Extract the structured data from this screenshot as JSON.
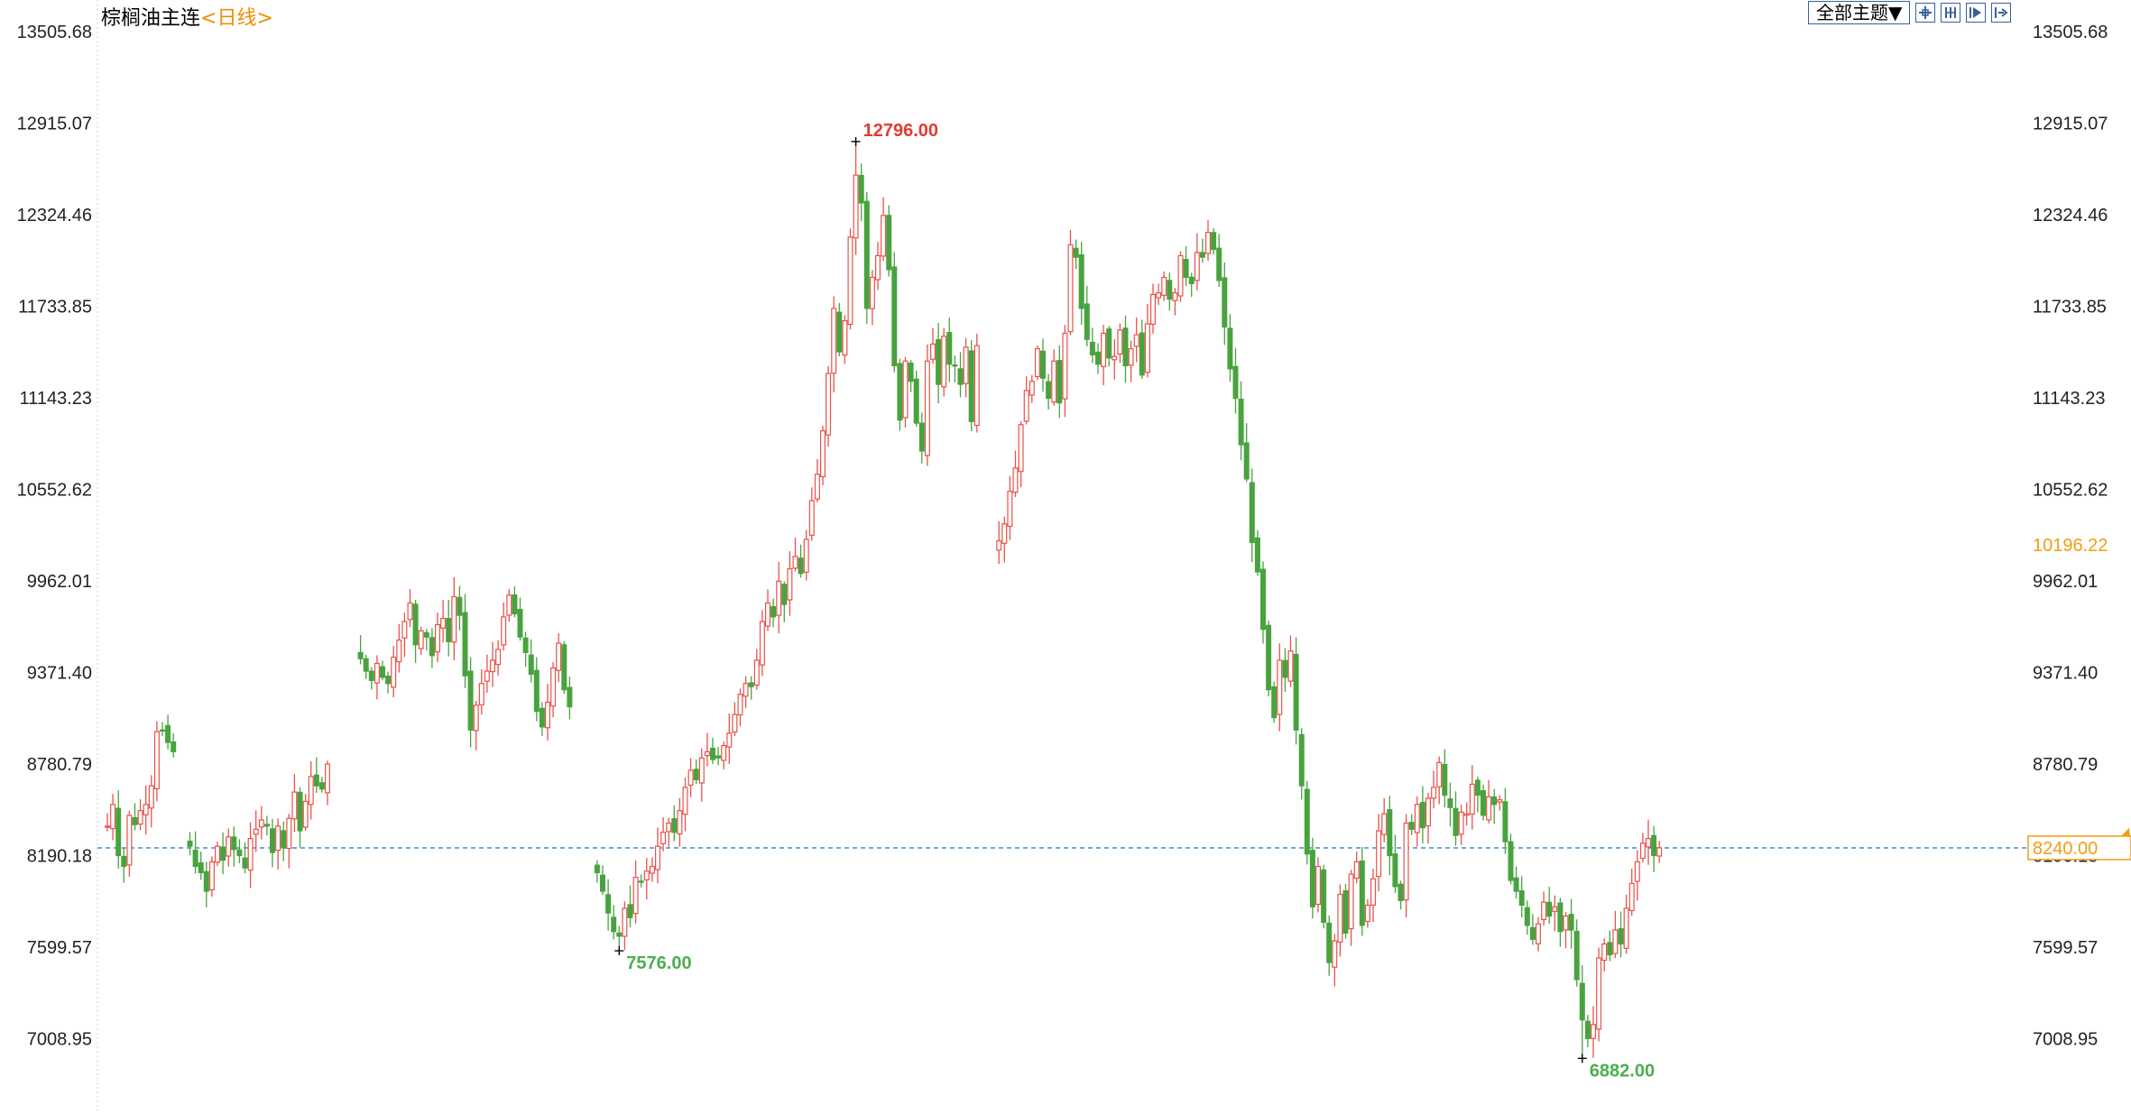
{
  "header": {
    "symbol": "棕榈油主连",
    "period_open": "<",
    "period": "日线",
    "period_close": ">",
    "theme_button": "全部主题▼"
  },
  "toolbar_icons": [
    "crosshair-icon",
    "interval-icon",
    "play-icon",
    "step-forward-icon"
  ],
  "colors": {
    "up": "#e8524a",
    "down": "#48a33e",
    "last_price": "#f39c12",
    "dashed_line": "#3a8fd0",
    "high_label": "#e03c31",
    "low_label": "#4cae4c"
  },
  "chart_data": {
    "type": "candlestick",
    "title": "棕榈油主连",
    "y_ticks": [
      "13505.68",
      "12915.07",
      "12324.46",
      "11733.85",
      "11143.23",
      "10552.62",
      "9962.01",
      "9371.40",
      "8780.79",
      "8190.18",
      "7599.57",
      "7008.95"
    ],
    "ylim": [
      6440,
      13505.68
    ],
    "right_markers": {
      "reference": "10196.22",
      "last": "8240.00"
    },
    "annotations": {
      "high": "12796.00",
      "low1": "7576.00",
      "low2": "6882.00"
    },
    "dashed_line_value": 8240,
    "grid": "dotted-left-border",
    "segments": [
      {
        "start_index": 0,
        "closes": [
          8380,
          8520,
          8190,
          8120,
          8450,
          8390,
          8480,
          8520,
          8640,
          8990,
          9000,
          8920,
          8860
        ]
      },
      {
        "start_index": 15,
        "closes": [
          8250,
          8120,
          8080,
          7960,
          8150,
          8250,
          8160,
          8310,
          8230,
          8190,
          8110,
          8300,
          8360,
          8420,
          8380,
          8210,
          8380,
          8240,
          8430,
          8600,
          8350,
          8540,
          8700,
          8640,
          8620,
          8780
        ]
      },
      {
        "start_index": 46,
        "closes": [
          9460,
          9380,
          9320,
          9430,
          9340,
          9300,
          9470,
          9580,
          9700,
          9820,
          9550,
          9640,
          9600,
          9480,
          9680,
          9720,
          9570,
          9860,
          9740,
          9350,
          9000,
          9160,
          9300,
          9380,
          9450,
          9520,
          9730,
          9870,
          9750,
          9600,
          9500,
          9360,
          9120,
          9020,
          9180,
          9400,
          9560,
          9260,
          9150
        ]
      },
      {
        "start_index": 89,
        "closes": [
          8080,
          7960,
          7820,
          7700,
          7670,
          7850,
          7790,
          8050,
          8020,
          8090,
          8120,
          8250,
          8340,
          8400,
          8340,
          8480,
          8630,
          8740,
          8680,
          8820,
          8860,
          8810,
          8820,
          8900,
          8980,
          9100,
          9230,
          9300,
          9280,
          9450,
          9700,
          9820,
          9730,
          9960,
          9810,
          10040,
          10120,
          10010,
          10230,
          10480,
          10650,
          10930,
          11300,
          11720,
          11440,
          11640,
          12180,
          12580,
          12400,
          11720,
          11920,
          12060,
          12320,
          11970,
          11350,
          11000,
          11380,
          11250,
          10980,
          10800,
          11380,
          11490,
          11230,
          11540,
          11360,
          11350,
          11230,
          11470,
          10990,
          11480
        ]
      },
      {
        "start_index": 162,
        "closes": [
          10220,
          10330,
          10540,
          10690,
          10970,
          11190,
          11250,
          11460,
          11270,
          11140,
          11380,
          11110,
          11560,
          12130,
          12050,
          11720,
          11520,
          11420,
          11360,
          11560,
          11400,
          11410,
          11580,
          11350,
          11460,
          11550,
          11290,
          11620,
          11810,
          11820,
          11920,
          11780,
          11820,
          12060,
          11920,
          11880,
          12080,
          12050,
          12210,
          12100,
          11900,
          11600,
          11330,
          11140,
          10840,
          10620,
          10210,
          10020,
          9650,
          9260,
          9080,
          9450,
          9340,
          9510,
          9000,
          8640,
          8200,
          7860,
          8120,
          7760,
          7500,
          7640,
          7940,
          7690,
          8070,
          8150,
          7740,
          7870,
          8040,
          8350,
          8460,
          8190,
          7990,
          7900,
          8400,
          8360,
          8520,
          8370,
          8560,
          8630,
          8790,
          8580,
          8500,
          8320,
          8470,
          8460,
          8650,
          8580,
          8450,
          8570,
          8520,
          8550,
          8280,
          8030,
          7960,
          7870,
          7740,
          7650,
          7750,
          7890,
          7800,
          7860,
          7700,
          7800,
          7710,
          7390,
          7130,
          7010,
          7100,
          7530,
          7620,
          7550,
          7710,
          7620,
          7850,
          8010,
          8150,
          8270,
          8300,
          8190,
          8240
        ]
      }
    ],
    "high_index": 136,
    "low_indices": [
      93,
      268
    ]
  }
}
